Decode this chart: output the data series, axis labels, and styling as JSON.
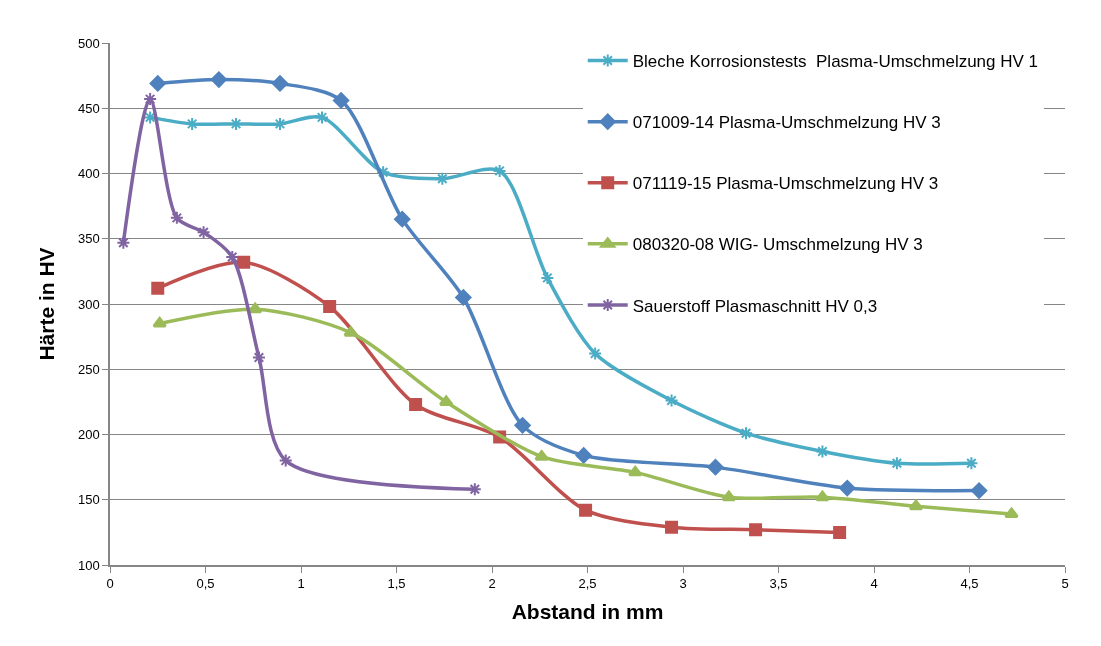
{
  "chart_data": {
    "type": "line",
    "xlabel": "Abstand in mm",
    "ylabel": "Härte in HV",
    "xlim": [
      0,
      5
    ],
    "xticks": [
      0,
      {
        "value": 0.5,
        "label": "0,5"
      },
      1,
      {
        "value": 1.5,
        "label": "1,5"
      },
      2,
      {
        "value": 2.5,
        "label": "2,5"
      },
      3,
      {
        "value": 3.5,
        "label": "3,5"
      },
      4,
      {
        "value": 4.5,
        "label": "4,5"
      },
      5
    ],
    "ylim": [
      100,
      500
    ],
    "yticks": [
      100,
      150,
      200,
      250,
      300,
      350,
      400,
      450,
      500
    ],
    "grid": "y",
    "legend": "top right",
    "line_style": "solid",
    "series": [
      {
        "name": "Bleche Korrosionstests  Plasma-Umschmelzung HV 1",
        "color": "#4bacc6",
        "marker": "cross",
        "x": [
          0.21,
          0.43,
          0.66,
          0.89,
          1.11,
          1.43,
          1.74,
          2.04,
          2.29,
          2.54,
          2.94,
          3.33,
          3.73,
          4.12,
          4.51
        ],
        "values": [
          443,
          438,
          438,
          438,
          443,
          401,
          396,
          402,
          320,
          262,
          226,
          201,
          187,
          178,
          178
        ]
      },
      {
        "name": "071009-14 Plasma-Umschmelzung HV 3",
        "color": "#4f81bd",
        "marker": "diamond",
        "x": [
          0.25,
          0.57,
          0.89,
          1.21,
          1.53,
          1.85,
          2.16,
          2.48,
          3.17,
          3.86,
          4.55
        ],
        "values": [
          469,
          472,
          469,
          456,
          365,
          305,
          207,
          184,
          175,
          159,
          157
        ]
      },
      {
        "name": "071119-15 Plasma-Umschmelzung HV 3",
        "color": "#c0504d",
        "marker": "square",
        "x": [
          0.25,
          0.7,
          1.15,
          1.6,
          2.04,
          2.49,
          2.94,
          3.38,
          3.82
        ],
        "values": [
          312,
          332,
          298,
          223,
          198,
          142,
          129,
          127,
          125
        ]
      },
      {
        "name": "080320-08 WIG- Umschmelzung HV 3",
        "color": "#9bbb59",
        "marker": "triangle",
        "x": [
          0.26,
          0.76,
          1.26,
          1.76,
          2.26,
          2.75,
          3.24,
          3.73,
          4.22,
          4.72
        ],
        "values": [
          285,
          296,
          278,
          225,
          183,
          171,
          152,
          152,
          145,
          139
        ]
      },
      {
        "name": "Sauerstoff Plasmaschnitt HV 0,3",
        "color": "#8064a2",
        "marker": "cross",
        "x": [
          0.07,
          0.21,
          0.35,
          0.49,
          0.64,
          0.78,
          0.92,
          1.91
        ],
        "values": [
          347,
          457,
          366,
          355,
          336,
          259,
          180,
          158
        ]
      }
    ]
  }
}
